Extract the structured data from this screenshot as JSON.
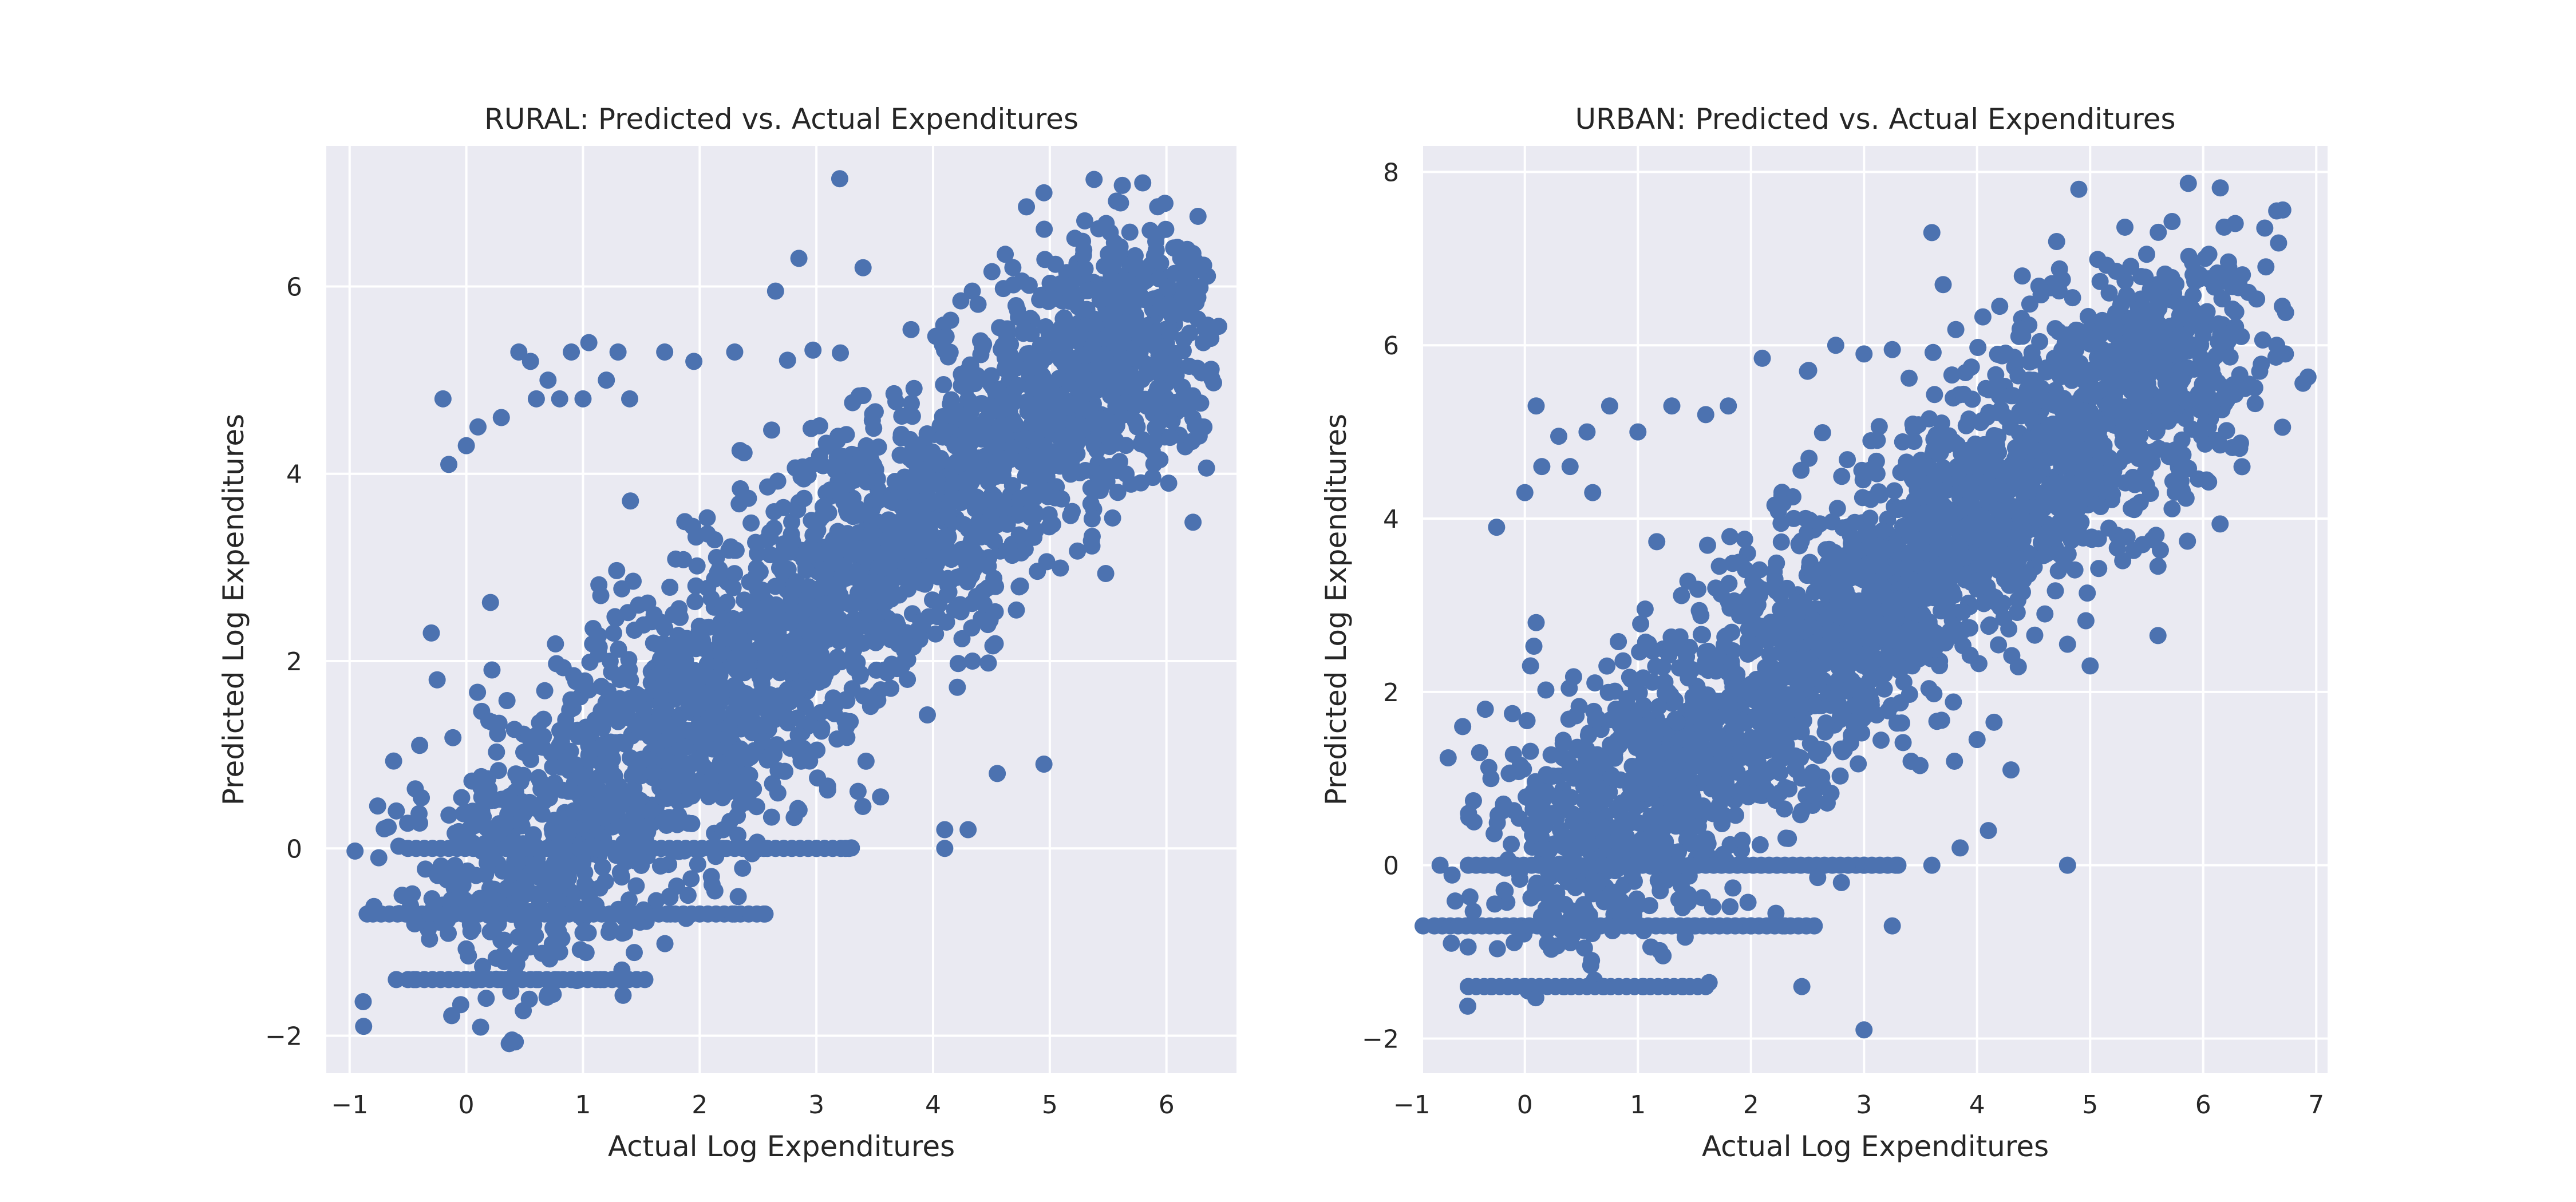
{
  "chart_data": [
    {
      "type": "scatter",
      "title": "RURAL: Predicted vs. Actual Expenditures",
      "xlabel": "Actual Log Expenditures",
      "ylabel": "Predicted Log Expenditures",
      "xlim": [
        -1.2,
        6.6
      ],
      "ylim": [
        -2.4,
        7.5
      ],
      "xticks": [
        -1,
        0,
        1,
        2,
        3,
        4,
        5,
        6
      ],
      "yticks": [
        -2,
        0,
        2,
        4,
        6
      ],
      "xtick_labels": [
        "−1",
        "0",
        "1",
        "2",
        "3",
        "4",
        "5",
        "6"
      ],
      "ytick_labels": [
        "−2",
        "0",
        "2",
        "4",
        "6"
      ],
      "grid": true,
      "color": "#4c72b0",
      "series": [
        {
          "description_free": true,
          "cloud": [
            [
              0.0,
              -0.7,
              0.8
            ],
            [
              6.0,
              5.8,
              0.7
            ]
          ],
          "points": [
            [
              -0.88,
              -1.9
            ],
            [
              0.17,
              -1.6
            ],
            [
              3.2,
              7.15
            ],
            [
              4.95,
              7.0
            ],
            [
              4.8,
              6.85
            ],
            [
              5.3,
              6.7
            ],
            [
              2.85,
              6.3
            ],
            [
              3.4,
              6.2
            ],
            [
              2.65,
              5.95
            ],
            [
              5.95,
              6.25
            ],
            [
              6.15,
              6.1
            ],
            [
              5.85,
              5.45
            ],
            [
              6.3,
              4.5
            ],
            [
              4.95,
              0.9
            ],
            [
              4.55,
              0.8
            ],
            [
              4.1,
              0.2
            ],
            [
              4.3,
              0.2
            ],
            [
              4.1,
              0.0
            ],
            [
              3.55,
              0.55
            ],
            [
              -0.2,
              4.8
            ],
            [
              0.3,
              4.6
            ],
            [
              0.1,
              4.5
            ],
            [
              0.0,
              4.3
            ],
            [
              -0.15,
              4.1
            ],
            [
              0.45,
              5.3
            ],
            [
              0.55,
              5.2
            ],
            [
              0.7,
              5.0
            ],
            [
              0.9,
              5.3
            ],
            [
              1.05,
              5.4
            ],
            [
              1.3,
              5.3
            ],
            [
              1.2,
              5.0
            ],
            [
              0.8,
              4.8
            ],
            [
              0.6,
              4.8
            ],
            [
              1.0,
              4.8
            ],
            [
              1.4,
              4.8
            ],
            [
              1.7,
              5.3
            ],
            [
              1.95,
              5.2
            ],
            [
              2.3,
              5.3
            ],
            [
              -0.3,
              2.3
            ],
            [
              -0.25,
              1.8
            ],
            [
              -0.4,
              1.1
            ],
            [
              -0.6,
              0.4
            ],
            [
              -0.75,
              -0.1
            ],
            [
              -0.55,
              -0.5
            ],
            [
              -0.85,
              -0.7
            ],
            [
              -0.6,
              -1.4
            ],
            [
              -0.45,
              -1.4
            ],
            [
              0.0,
              -1.4
            ],
            [
              0.3,
              -1.4
            ],
            [
              0.6,
              -1.4
            ],
            [
              0.9,
              -1.4
            ],
            [
              1.15,
              -1.4
            ],
            [
              1.35,
              -1.4
            ],
            [
              0.4,
              -1.2
            ],
            [
              0.55,
              -0.9
            ],
            [
              1.0,
              -0.9
            ],
            [
              1.4,
              -0.7
            ],
            [
              1.75,
              -0.7
            ],
            [
              2.3,
              -0.7
            ],
            [
              2.55,
              -0.7
            ],
            [
              1.9,
              -0.5
            ],
            [
              2.1,
              -0.3
            ],
            [
              2.55,
              0.0
            ],
            [
              3.0,
              0.0
            ],
            [
              3.25,
              0.0
            ],
            [
              2.2,
              0.0
            ],
            [
              2.5,
              0.0
            ]
          ]
        }
      ]
    },
    {
      "type": "scatter",
      "title": "URBAN: Predicted vs. Actual Expenditures",
      "xlabel": "Actual Log Expenditures",
      "ylabel": "Predicted Log Expenditures",
      "xlim": [
        -0.9,
        7.1
      ],
      "ylim": [
        -2.4,
        8.3
      ],
      "xticks": [
        -1,
        0,
        1,
        2,
        3,
        4,
        5,
        6,
        7
      ],
      "yticks": [
        -2,
        0,
        2,
        4,
        6,
        8
      ],
      "xtick_labels": [
        "−1",
        "0",
        "1",
        "2",
        "3",
        "4",
        "5",
        "6",
        "7"
      ],
      "ytick_labels": [
        "−2",
        "0",
        "2",
        "4",
        "6",
        "8"
      ],
      "grid": true,
      "color": "#4c72b0",
      "series": [
        {
          "cloud": [
            [
              0.1,
              -0.2,
              0.8
            ],
            [
              6.1,
              6.3,
              0.7
            ]
          ],
          "points": [
            [
              3.0,
              -1.9
            ],
            [
              2.45,
              -1.4
            ],
            [
              3.25,
              -0.7
            ],
            [
              4.8,
              0.0
            ],
            [
              4.9,
              7.8
            ],
            [
              6.65,
              7.55
            ],
            [
              6.7,
              6.45
            ],
            [
              6.65,
              6.0
            ],
            [
              6.5,
              5.7
            ],
            [
              6.2,
              5.4
            ],
            [
              6.15,
              4.85
            ],
            [
              3.6,
              7.3
            ],
            [
              3.7,
              6.7
            ],
            [
              4.2,
              6.45
            ],
            [
              4.4,
              6.8
            ],
            [
              5.5,
              7.05
            ],
            [
              5.6,
              6.6
            ],
            [
              6.05,
              7.05
            ],
            [
              5.6,
              2.65
            ],
            [
              5.6,
              3.45
            ],
            [
              5.0,
              2.3
            ],
            [
              4.8,
              2.55
            ],
            [
              4.6,
              2.9
            ],
            [
              4.3,
              1.1
            ],
            [
              4.0,
              1.45
            ],
            [
              3.8,
              1.2
            ],
            [
              4.15,
              1.65
            ],
            [
              -0.55,
              1.6
            ],
            [
              -0.75,
              0.0
            ],
            [
              -0.9,
              -0.7
            ],
            [
              -0.65,
              -0.9
            ],
            [
              -0.5,
              -1.4
            ],
            [
              -0.3,
              -1.4
            ],
            [
              0.0,
              -1.4
            ],
            [
              0.35,
              -1.4
            ],
            [
              0.7,
              -1.4
            ],
            [
              1.05,
              -1.4
            ],
            [
              1.4,
              -1.4
            ],
            [
              1.6,
              -1.4
            ],
            [
              0.1,
              5.3
            ],
            [
              0.3,
              4.95
            ],
            [
              0.55,
              5.0
            ],
            [
              0.75,
              5.3
            ],
            [
              1.0,
              5.0
            ],
            [
              1.3,
              5.3
            ],
            [
              1.6,
              5.2
            ],
            [
              1.8,
              5.3
            ],
            [
              -0.25,
              3.9
            ],
            [
              0.0,
              4.3
            ],
            [
              0.15,
              4.6
            ],
            [
              0.4,
              4.6
            ],
            [
              0.6,
              4.3
            ],
            [
              2.1,
              5.85
            ],
            [
              2.5,
              5.7
            ],
            [
              2.75,
              6.0
            ],
            [
              3.0,
              5.9
            ],
            [
              3.25,
              5.95
            ],
            [
              0.1,
              2.8
            ],
            [
              0.05,
              2.3
            ],
            [
              -0.35,
              1.8
            ],
            [
              -0.3,
              1.0
            ],
            [
              -0.45,
              0.5
            ],
            [
              0.2,
              -0.9
            ],
            [
              0.5,
              -0.7
            ],
            [
              1.0,
              -0.7
            ],
            [
              1.5,
              -0.7
            ],
            [
              2.0,
              -0.7
            ],
            [
              2.3,
              -0.7
            ],
            [
              2.8,
              -0.2
            ],
            [
              3.0,
              0.0
            ],
            [
              3.3,
              0.0
            ],
            [
              3.6,
              0.0
            ],
            [
              3.85,
              0.2
            ],
            [
              4.1,
              0.4
            ]
          ]
        }
      ]
    }
  ]
}
